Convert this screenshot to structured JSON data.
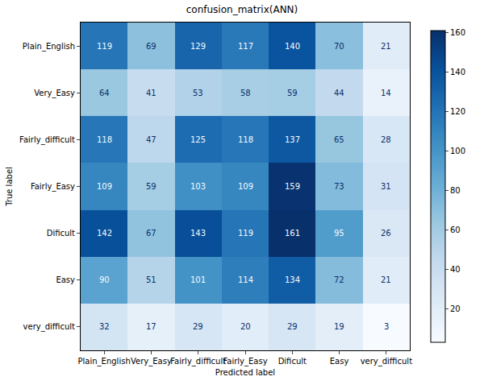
{
  "chart_data": {
    "type": "heatmap",
    "title": "confusion_matrix(ANN)",
    "x_label": "Predicted label",
    "y_label": "True label",
    "x_categories": [
      "Plain_English",
      "Very_Easy",
      "Fairly_difficult",
      "Fairly_Easy",
      "Dificult",
      "Easy",
      "very_difficult"
    ],
    "y_categories": [
      "Plain_English",
      "Very_Easy",
      "Fairly_difficult",
      "Fairly_Easy",
      "Dificult",
      "Easy",
      "very_difficult"
    ],
    "cells": [
      [
        119,
        69,
        129,
        117,
        140,
        70,
        21
      ],
      [
        64,
        41,
        53,
        58,
        59,
        44,
        14
      ],
      [
        118,
        47,
        125,
        118,
        137,
        65,
        28
      ],
      [
        109,
        59,
        103,
        109,
        159,
        73,
        31
      ],
      [
        142,
        67,
        143,
        119,
        161,
        95,
        26
      ],
      [
        90,
        51,
        101,
        114,
        134,
        72,
        21
      ],
      [
        32,
        17,
        29,
        20,
        29,
        19,
        3
      ]
    ],
    "color": "Blues",
    "colorbar": {
      "range": [
        3,
        161
      ],
      "ticks": [
        20,
        40,
        60,
        80,
        100,
        120,
        140,
        160
      ]
    },
    "data_labels": true,
    "grid": false
  }
}
